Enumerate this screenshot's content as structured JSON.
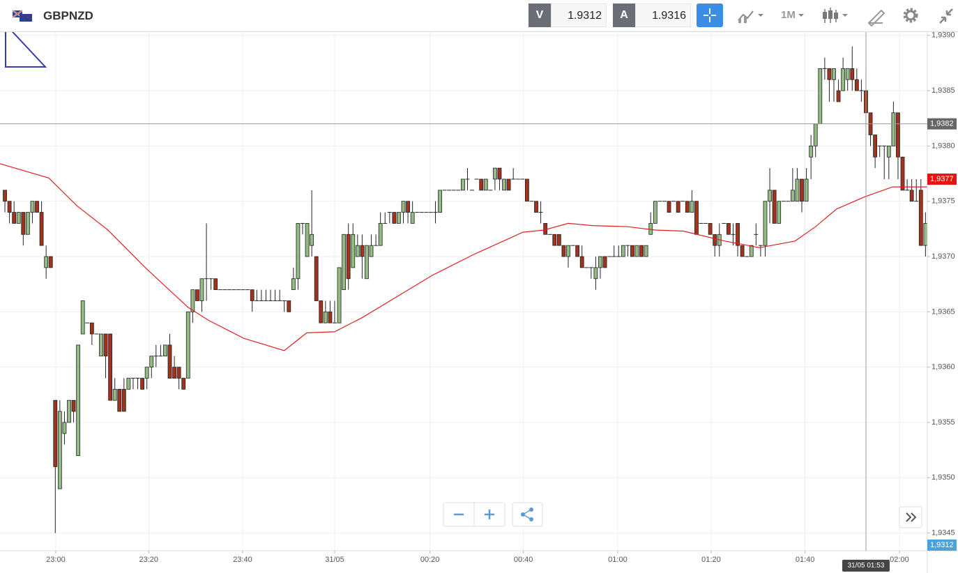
{
  "toolbar": {
    "symbol": "GBPNZD",
    "sell_label": "V",
    "sell_price": 1.9312,
    "buy_label": "A",
    "buy_price": 1.9316,
    "timeframe": "1M"
  },
  "chart_data": {
    "type": "candlestick",
    "up_color": "#94bb85",
    "down_color": "#a0321e",
    "ma_color": "#e02020",
    "grid": true,
    "xlim": [
      -1.07,
      201.4
    ],
    "xticks": [
      {
        "value": 11.1,
        "label": "23:00"
      },
      {
        "value": 31.4,
        "label": "23:20"
      },
      {
        "value": 51.9,
        "label": "23:40"
      },
      {
        "value": 72.0,
        "label": "31/05"
      },
      {
        "value": 92.8,
        "label": "00:20"
      },
      {
        "value": 113.2,
        "label": "00:40"
      },
      {
        "value": 133.8,
        "label": "01:00"
      },
      {
        "value": 154.2,
        "label": "01:20"
      },
      {
        "value": 174.7,
        "label": "01:40"
      },
      {
        "value": 195.3,
        "label": "02:00"
      }
    ],
    "ylim": [
      1.93434,
      1.93903
    ],
    "yticks": [
      {
        "value": 1.9345,
        "label": "1,9345"
      },
      {
        "value": 1.935,
        "label": "1,9350"
      },
      {
        "value": 1.9355,
        "label": "1,9355"
      },
      {
        "value": 1.936,
        "label": "1,9360"
      },
      {
        "value": 1.9365,
        "label": "1,9365"
      },
      {
        "value": 1.937,
        "label": "1,9370"
      },
      {
        "value": 1.9375,
        "label": "1,9375"
      },
      {
        "value": 1.938,
        "label": "1,9380"
      },
      {
        "value": 1.9385,
        "label": "1,9385"
      },
      {
        "value": 1.939,
        "label": "1,9390"
      }
    ],
    "open": [
      1.9376,
      1.9375,
      1.9374,
      1.9373,
      1.9374,
      1.9372,
      1.9374,
      1.9375,
      1.9374,
      1.9369,
      1.937,
      1.9357,
      1.9349,
      1.9354,
      1.9355,
      1.9357,
      1.9352,
      1.9363,
      1.9364,
      1.9364,
      1.9363,
      1.9361,
      1.9363,
      1.9363,
      1.9357,
      1.9358,
      1.9358,
      1.9358,
      1.9359,
      1.9359,
      1.9359,
      1.9359,
      1.936,
      1.9361,
      1.9361,
      1.9361,
      1.9362,
      1.936,
      1.936,
      1.9359,
      1.9359,
      1.9365,
      1.9367,
      1.9366,
      1.9368,
      1.9368,
      1.9368,
      1.9367,
      1.9367,
      1.9367,
      1.9367,
      1.9367,
      1.9367,
      1.9367,
      1.9367,
      1.9366,
      1.9366,
      1.9366,
      1.9366,
      1.9366,
      1.9366,
      1.9366,
      1.9366,
      1.9367,
      1.9368,
      1.9373,
      1.937,
      1.9371,
      1.937,
      1.9366,
      1.9364,
      1.9365,
      1.9364,
      1.9364,
      1.9367,
      1.9372,
      1.9369,
      1.937,
      1.9371,
      1.9368,
      1.937,
      1.9371,
      1.9371,
      1.9373,
      1.9374,
      1.9374,
      1.9373,
      1.9374,
      1.9375,
      1.9373,
      1.9374,
      1.9374,
      1.9374,
      1.9374,
      1.9374,
      1.9374,
      1.9376,
      1.9376,
      1.9376,
      1.9376,
      1.9376,
      1.9377,
      1.9376,
      1.9377,
      1.9377,
      1.9376,
      1.9376,
      1.9377,
      1.9378,
      1.9376,
      1.9377,
      1.9377,
      1.9377,
      1.9377,
      1.9377,
      1.9375,
      1.9375,
      1.9374,
      1.9373,
      1.9372,
      1.9372,
      1.9372,
      1.9371,
      1.937,
      1.9371,
      1.9371,
      1.937,
      1.9369,
      1.9369,
      1.9368,
      1.9369,
      1.937,
      1.937,
      1.937,
      1.937,
      1.937,
      1.9371,
      1.9371,
      1.937,
      1.9371,
      1.937,
      1.9372,
      1.9373,
      1.9375,
      1.9375,
      1.9375,
      1.9375,
      1.9375,
      1.9375,
      1.9375,
      1.9374,
      1.9375,
      1.9373,
      1.9373,
      1.9373,
      1.9372,
      1.9371,
      1.9373,
      1.9373,
      1.9372,
      1.9373,
      1.9371,
      1.937,
      1.937,
      1.9372,
      1.9371,
      1.9371,
      1.9375,
      1.9376,
      1.9373,
      1.9375,
      1.9375,
      1.9375,
      1.9375,
      1.9377,
      1.9375,
      1.9379,
      1.938,
      1.9382,
      1.9387,
      1.9387,
      1.9386,
      1.9385,
      1.9385,
      1.9386,
      1.9387,
      1.9386,
      1.9385,
      1.9385,
      1.9383,
      1.9381,
      1.938,
      1.938,
      1.9379,
      1.938,
      1.9383,
      1.9379,
      1.9376,
      1.9376,
      1.9375,
      1.9376,
      1.9371
    ],
    "high": [
      1.9376,
      1.9375,
      1.9375,
      1.9374,
      1.9374,
      1.9374,
      1.9375,
      1.9375,
      1.9375,
      1.9371,
      1.937,
      1.9357,
      1.9357,
      1.9356,
      1.9357,
      1.9357,
      1.9362,
      1.9366,
      1.9364,
      1.9364,
      1.9363,
      1.9363,
      1.9363,
      1.9363,
      1.9359,
      1.9358,
      1.9359,
      1.9359,
      1.9359,
      1.9359,
      1.9359,
      1.936,
      1.9361,
      1.9362,
      1.9362,
      1.9362,
      1.9363,
      1.9361,
      1.936,
      1.9359,
      1.9365,
      1.9367,
      1.9367,
      1.9368,
      1.9373,
      1.9368,
      1.9368,
      1.9367,
      1.9367,
      1.9367,
      1.9367,
      1.9367,
      1.9367,
      1.9367,
      1.9367,
      1.9367,
      1.9367,
      1.9367,
      1.9367,
      1.9367,
      1.9367,
      1.9366,
      1.9366,
      1.9369,
      1.9373,
      1.9373,
      1.9373,
      1.9376,
      1.937,
      1.9366,
      1.9366,
      1.9366,
      1.9366,
      1.9369,
      1.9372,
      1.9373,
      1.9373,
      1.9372,
      1.9372,
      1.9371,
      1.9372,
      1.9372,
      1.9374,
      1.9374,
      1.9374,
      1.9374,
      1.9374,
      1.9375,
      1.9375,
      1.9375,
      1.9374,
      1.9374,
      1.9374,
      1.9374,
      1.9375,
      1.9376,
      1.9376,
      1.9376,
      1.9376,
      1.9376,
      1.9377,
      1.9378,
      1.9376,
      1.9377,
      1.9377,
      1.9377,
      1.9376,
      1.9378,
      1.9378,
      1.9377,
      1.9377,
      1.9378,
      1.9377,
      1.9377,
      1.9377,
      1.9375,
      1.9375,
      1.9375,
      1.9373,
      1.9372,
      1.9372,
      1.9372,
      1.9371,
      1.9371,
      1.9371,
      1.9371,
      1.9371,
      1.9369,
      1.9369,
      1.937,
      1.937,
      1.937,
      1.937,
      1.9371,
      1.9371,
      1.9371,
      1.9371,
      1.9371,
      1.9371,
      1.9371,
      1.9371,
      1.9374,
      1.9375,
      1.9375,
      1.9375,
      1.9375,
      1.9375,
      1.9375,
      1.9375,
      1.9375,
      1.9376,
      1.9375,
      1.9373,
      1.9373,
      1.9373,
      1.9372,
      1.9373,
      1.9373,
      1.9373,
      1.9373,
      1.9373,
      1.9371,
      1.937,
      1.9371,
      1.9373,
      1.9371,
      1.9375,
      1.9378,
      1.9376,
      1.9375,
      1.9375,
      1.9375,
      1.9378,
      1.9378,
      1.9377,
      1.9378,
      1.9381,
      1.9382,
      1.9387,
      1.9388,
      1.9387,
      1.9387,
      1.9386,
      1.9388,
      1.9387,
      1.9389,
      1.9387,
      1.9386,
      1.9387,
      1.9383,
      1.9381,
      1.938,
      1.938,
      1.938,
      1.9384,
      1.9383,
      1.9379,
      1.9377,
      1.9377,
      1.9377,
      1.9377,
      1.9374
    ],
    "low": [
      1.9374,
      1.9373,
      1.9373,
      1.9373,
      1.9371,
      1.9372,
      1.9373,
      1.9374,
      1.9371,
      1.9368,
      1.9369,
      1.9345,
      1.9349,
      1.9353,
      1.9355,
      1.9355,
      1.9352,
      1.9363,
      1.9364,
      1.9362,
      1.9363,
      1.9361,
      1.9359,
      1.9357,
      1.9357,
      1.9356,
      1.9356,
      1.9358,
      1.9358,
      1.9358,
      1.9358,
      1.9358,
      1.9359,
      1.936,
      1.9361,
      1.9361,
      1.9359,
      1.9359,
      1.9358,
      1.9358,
      1.9359,
      1.9364,
      1.9366,
      1.9365,
      1.9366,
      1.9367,
      1.9367,
      1.9367,
      1.9367,
      1.9367,
      1.9367,
      1.9367,
      1.9367,
      1.9367,
      1.9365,
      1.9366,
      1.9366,
      1.9366,
      1.9366,
      1.9366,
      1.9366,
      1.9365,
      1.9365,
      1.9367,
      1.9367,
      1.9372,
      1.937,
      1.937,
      1.9366,
      1.9364,
      1.9364,
      1.9364,
      1.9364,
      1.9364,
      1.9367,
      1.9367,
      1.9369,
      1.937,
      1.9368,
      1.9368,
      1.937,
      1.9371,
      1.9371,
      1.9373,
      1.9373,
      1.9373,
      1.9373,
      1.9373,
      1.9373,
      1.9373,
      1.9374,
      1.9374,
      1.9374,
      1.9374,
      1.9373,
      1.9374,
      1.9376,
      1.9376,
      1.9376,
      1.9376,
      1.9376,
      1.9376,
      1.9376,
      1.9377,
      1.9376,
      1.9376,
      1.9376,
      1.9376,
      1.9376,
      1.9376,
      1.9376,
      1.9377,
      1.9377,
      1.9377,
      1.9375,
      1.9375,
      1.9374,
      1.9373,
      1.9372,
      1.9372,
      1.9371,
      1.9371,
      1.937,
      1.9369,
      1.9371,
      1.937,
      1.9369,
      1.9369,
      1.9368,
      1.9367,
      1.9368,
      1.9369,
      1.937,
      1.937,
      1.937,
      1.937,
      1.937,
      1.937,
      1.937,
      1.937,
      1.937,
      1.9372,
      1.9373,
      1.9375,
      1.9375,
      1.9374,
      1.9375,
      1.9374,
      1.9375,
      1.9374,
      1.9374,
      1.9372,
      1.9373,
      1.9373,
      1.9372,
      1.937,
      1.937,
      1.9373,
      1.9372,
      1.9371,
      1.937,
      1.937,
      1.937,
      1.937,
      1.9371,
      1.937,
      1.937,
      1.9373,
      1.9373,
      1.9373,
      1.9375,
      1.9375,
      1.9375,
      1.9375,
      1.9374,
      1.9375,
      1.9377,
      1.9379,
      1.9382,
      1.9386,
      1.9384,
      1.9384,
      1.9384,
      1.9385,
      1.9385,
      1.9385,
      1.9385,
      1.9384,
      1.9382,
      1.938,
      1.9378,
      1.9379,
      1.9377,
      1.9377,
      1.938,
      1.9377,
      1.9376,
      1.9376,
      1.9375,
      1.9375,
      1.9371,
      1.937
    ],
    "close": [
      1.9375,
      1.9374,
      1.9373,
      1.9374,
      1.9372,
      1.9374,
      1.9375,
      1.9374,
      1.9371,
      1.937,
      1.9369,
      1.9351,
      1.9356,
      1.9355,
      1.9357,
      1.9356,
      1.9362,
      1.9366,
      1.9364,
      1.9363,
      1.9363,
      1.9363,
      1.9361,
      1.9357,
      1.9358,
      1.9356,
      1.9356,
      1.9359,
      1.9359,
      1.9359,
      1.9358,
      1.936,
      1.9361,
      1.9361,
      1.9361,
      1.9362,
      1.9359,
      1.9359,
      1.9359,
      1.9358,
      1.9365,
      1.9367,
      1.9366,
      1.9368,
      1.9368,
      1.9368,
      1.9367,
      1.9367,
      1.9367,
      1.9367,
      1.9367,
      1.9367,
      1.9367,
      1.9367,
      1.9366,
      1.9366,
      1.9366,
      1.9366,
      1.9366,
      1.9366,
      1.9366,
      1.9366,
      1.9365,
      1.9368,
      1.9373,
      1.9373,
      1.9373,
      1.9372,
      1.9366,
      1.9364,
      1.9365,
      1.9364,
      1.9364,
      1.9369,
      1.9372,
      1.9368,
      1.9372,
      1.9371,
      1.937,
      1.9371,
      1.9371,
      1.9371,
      1.9373,
      1.9373,
      1.9374,
      1.9373,
      1.9374,
      1.9375,
      1.9374,
      1.9374,
      1.9374,
      1.9374,
      1.9374,
      1.9374,
      1.9374,
      1.9376,
      1.9376,
      1.9376,
      1.9376,
      1.9376,
      1.9377,
      1.9377,
      1.9376,
      1.9377,
      1.9376,
      1.9377,
      1.9376,
      1.9378,
      1.9377,
      1.9377,
      1.9376,
      1.9377,
      1.9377,
      1.9377,
      1.9375,
      1.9375,
      1.9374,
      1.9374,
      1.9372,
      1.9372,
      1.9371,
      1.9371,
      1.937,
      1.9371,
      1.9371,
      1.937,
      1.9369,
      1.9369,
      1.9369,
      1.9369,
      1.937,
      1.9369,
      1.937,
      1.937,
      1.937,
      1.9371,
      1.9371,
      1.937,
      1.9371,
      1.937,
      1.9371,
      1.9373,
      1.9375,
      1.9375,
      1.9375,
      1.9374,
      1.9375,
      1.9374,
      1.9375,
      1.9374,
      1.9375,
      1.9372,
      1.9373,
      1.9373,
      1.9372,
      1.9371,
      1.9372,
      1.9373,
      1.9372,
      1.9372,
      1.9371,
      1.937,
      1.937,
      1.9371,
      1.9372,
      1.9371,
      1.9375,
      1.9376,
      1.9373,
      1.9375,
      1.9375,
      1.9375,
      1.9376,
      1.9377,
      1.9375,
      1.9377,
      1.938,
      1.9382,
      1.9387,
      1.9387,
      1.9386,
      1.9387,
      1.9384,
      1.9387,
      1.9387,
      1.9386,
      1.9385,
      1.9385,
      1.9383,
      1.9381,
      1.9379,
      1.938,
      1.938,
      1.938,
      1.9383,
      1.9379,
      1.9376,
      1.9376,
      1.9375,
      1.9375,
      1.9371,
      1.9373
    ],
    "ma": {
      "x": [
        -1.1,
        9.6,
        15.7,
        22.5,
        30.9,
        40.0,
        44.6,
        52.2,
        61.0,
        65.9,
        72.0,
        78.1,
        85.7,
        93.3,
        102.4,
        113.1,
        117.7,
        123.0,
        128.3,
        135.9,
        142.0,
        148.1,
        157.2,
        164.8,
        172.5,
        177.0,
        181.6,
        187.7,
        193.8,
        201.4
      ],
      "values": [
        1.93784,
        1.93771,
        1.93746,
        1.93724,
        1.93689,
        1.93654,
        1.93642,
        1.93626,
        1.93615,
        1.93631,
        1.93632,
        1.93645,
        1.93664,
        1.93683,
        1.93702,
        1.93722,
        1.93724,
        1.9373,
        1.93728,
        1.93727,
        1.93724,
        1.93723,
        1.93714,
        1.93708,
        1.93714,
        1.93727,
        1.93743,
        1.93754,
        1.93763,
        1.93763
      ]
    },
    "crosshair": {
      "x": 188.0,
      "time": "31/05 01:53",
      "price": {
        "value": 1.9382,
        "label": "1,9382"
      }
    },
    "last_price": {
      "value": 1.9377,
      "label": "1,9377"
    },
    "bid_label": "1,9312"
  }
}
